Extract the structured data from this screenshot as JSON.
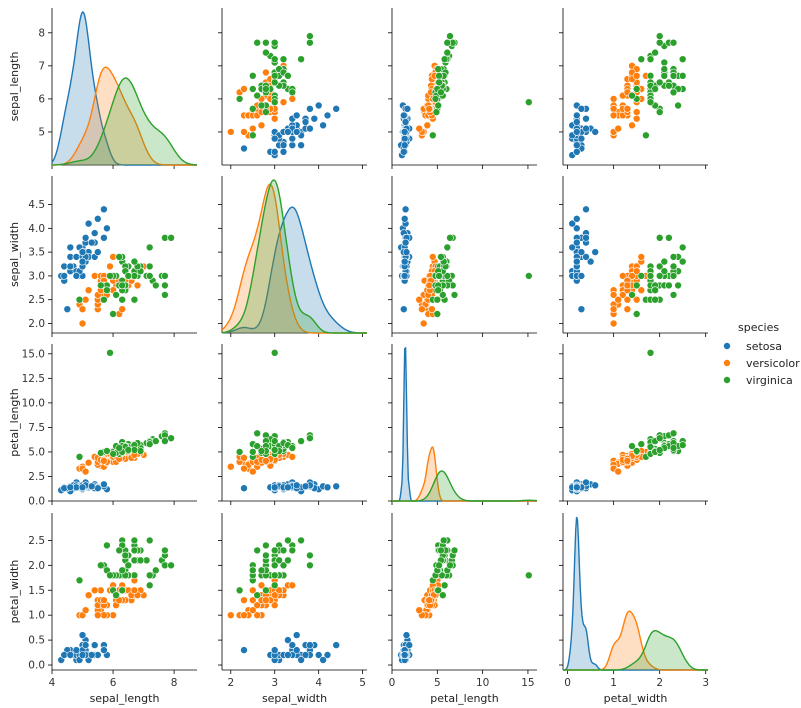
{
  "chart_data": {
    "type": "scatter",
    "variables": [
      "sepal_length",
      "sepal_width",
      "petal_length",
      "petal_width"
    ],
    "axis_ranges": {
      "sepal_length": [
        4.0,
        8.75
      ],
      "sepal_width": [
        1.8,
        5.1
      ],
      "petal_length": [
        0.0,
        16.0
      ],
      "petal_width": [
        -0.1,
        3.05
      ]
    },
    "ticks": {
      "sepal_length": [
        4,
        6,
        8
      ],
      "sepal_width": [
        2,
        3,
        4,
        5
      ],
      "petal_length": [
        0,
        5,
        10,
        15
      ],
      "petal_width": [
        0,
        1,
        2,
        3
      ]
    },
    "y_ticks": {
      "sepal_length": [
        "5",
        "6",
        "7",
        "8"
      ],
      "sepal_width": [
        "2.0",
        "2.5",
        "3.0",
        "3.5",
        "4.0",
        "4.5"
      ],
      "petal_length": [
        "0.0",
        "2.5",
        "5.0",
        "7.5",
        "10.0",
        "12.5",
        "15.0"
      ],
      "petal_width": [
        "0.0",
        "0.5",
        "1.0",
        "1.5",
        "2.0",
        "2.5"
      ]
    },
    "x_ticks": {
      "sepal_length": [
        "4",
        "6",
        "8"
      ],
      "sepal_width": [
        "2",
        "3",
        "4",
        "5"
      ],
      "petal_length": [
        "0",
        "5",
        "10",
        "15"
      ],
      "petal_width": [
        "0",
        "1",
        "2",
        "3"
      ]
    },
    "legend": {
      "title": "species",
      "position": "right",
      "entries": [
        "setosa",
        "versicolor",
        "virginica"
      ]
    },
    "colors": {
      "setosa": "#1f77b4",
      "versicolor": "#ff7f0e",
      "virginica": "#2ca02c"
    },
    "series": [
      {
        "name": "setosa",
        "sepal_length": [
          5.1,
          4.9,
          4.7,
          4.6,
          5.0,
          5.4,
          4.6,
          5.0,
          4.4,
          4.9,
          5.4,
          4.8,
          4.8,
          4.3,
          5.8,
          5.7,
          5.4,
          5.1,
          5.7,
          5.1,
          5.4,
          5.1,
          4.6,
          5.1,
          4.8,
          5.0,
          5.0,
          5.2,
          5.2,
          4.7,
          4.8,
          5.4,
          5.2,
          5.5,
          4.9,
          5.0,
          5.5,
          4.9,
          4.4,
          5.1,
          5.0,
          4.5,
          4.4,
          5.0,
          5.1,
          4.8,
          5.1,
          4.6,
          5.3,
          5.0
        ],
        "sepal_width": [
          3.5,
          3.0,
          3.2,
          3.1,
          3.6,
          3.9,
          3.4,
          3.4,
          2.9,
          3.1,
          3.7,
          3.4,
          3.0,
          3.0,
          4.0,
          4.4,
          3.9,
          3.5,
          3.8,
          3.8,
          3.4,
          3.7,
          3.6,
          3.3,
          3.4,
          3.0,
          3.4,
          3.5,
          3.4,
          3.2,
          3.1,
          3.4,
          4.1,
          4.2,
          3.1,
          3.2,
          3.5,
          3.6,
          3.0,
          3.4,
          3.5,
          2.3,
          3.2,
          3.5,
          3.8,
          3.0,
          3.8,
          3.2,
          3.7,
          3.3
        ],
        "petal_length": [
          1.4,
          1.4,
          1.3,
          1.5,
          1.4,
          1.7,
          1.4,
          1.5,
          1.4,
          1.5,
          1.5,
          1.6,
          1.4,
          1.1,
          1.2,
          1.5,
          1.3,
          1.4,
          1.7,
          1.5,
          1.7,
          1.5,
          1.0,
          1.7,
          1.9,
          1.6,
          1.6,
          1.5,
          1.4,
          1.6,
          1.6,
          1.5,
          1.5,
          1.4,
          1.5,
          1.2,
          1.3,
          1.4,
          1.3,
          1.5,
          1.3,
          1.3,
          1.3,
          1.6,
          1.9,
          1.4,
          1.6,
          1.4,
          1.5,
          1.4
        ],
        "petal_width": [
          0.2,
          0.2,
          0.2,
          0.2,
          0.2,
          0.4,
          0.3,
          0.2,
          0.2,
          0.1,
          0.2,
          0.2,
          0.1,
          0.1,
          0.2,
          0.4,
          0.4,
          0.3,
          0.3,
          0.3,
          0.2,
          0.4,
          0.2,
          0.5,
          0.2,
          0.2,
          0.4,
          0.2,
          0.2,
          0.2,
          0.2,
          0.4,
          0.1,
          0.2,
          0.2,
          0.2,
          0.2,
          0.1,
          0.2,
          0.2,
          0.3,
          0.3,
          0.2,
          0.6,
          0.4,
          0.3,
          0.2,
          0.2,
          0.2,
          0.2
        ]
      },
      {
        "name": "versicolor",
        "sepal_length": [
          7.0,
          6.4,
          6.9,
          5.5,
          6.5,
          5.7,
          6.3,
          4.9,
          6.6,
          5.2,
          5.0,
          5.9,
          6.0,
          6.1,
          5.6,
          6.7,
          5.6,
          5.8,
          6.2,
          5.6,
          5.9,
          6.1,
          6.3,
          6.1,
          6.4,
          6.6,
          6.8,
          6.7,
          6.0,
          5.7,
          5.5,
          5.5,
          5.8,
          6.0,
          5.4,
          6.0,
          6.7,
          6.3,
          5.6,
          5.5,
          5.5,
          6.1,
          5.8,
          5.0,
          5.6,
          5.7,
          5.7,
          6.2,
          5.1,
          5.7
        ],
        "sepal_width": [
          3.2,
          3.2,
          3.1,
          2.3,
          2.8,
          2.8,
          3.3,
          2.4,
          2.9,
          2.7,
          2.0,
          3.0,
          2.2,
          2.9,
          2.9,
          3.1,
          3.0,
          2.7,
          2.2,
          2.5,
          3.2,
          2.8,
          2.5,
          2.8,
          2.9,
          3.0,
          2.8,
          3.0,
          2.9,
          2.6,
          2.4,
          2.4,
          2.7,
          2.7,
          3.0,
          3.4,
          3.1,
          2.3,
          3.0,
          2.5,
          2.6,
          3.0,
          2.6,
          2.3,
          2.7,
          3.0,
          2.9,
          2.9,
          2.5,
          2.8
        ],
        "petal_length": [
          4.7,
          4.5,
          4.9,
          4.0,
          4.6,
          4.5,
          4.7,
          3.3,
          4.6,
          3.9,
          3.5,
          4.2,
          4.0,
          4.7,
          3.6,
          4.4,
          4.5,
          4.1,
          4.5,
          3.9,
          4.8,
          4.0,
          4.9,
          4.7,
          4.3,
          4.4,
          4.8,
          5.0,
          4.5,
          3.5,
          3.8,
          3.7,
          3.9,
          5.1,
          4.5,
          4.5,
          4.7,
          4.4,
          4.1,
          4.0,
          4.4,
          4.6,
          4.0,
          3.3,
          4.2,
          4.2,
          4.2,
          4.3,
          3.0,
          4.1
        ],
        "petal_width": [
          1.4,
          1.5,
          1.5,
          1.3,
          1.5,
          1.3,
          1.6,
          1.0,
          1.3,
          1.4,
          1.0,
          1.5,
          1.0,
          1.4,
          1.3,
          1.4,
          1.5,
          1.0,
          1.5,
          1.1,
          1.8,
          1.3,
          1.5,
          1.2,
          1.3,
          1.4,
          1.4,
          1.7,
          1.5,
          1.0,
          1.1,
          1.0,
          1.2,
          1.6,
          1.5,
          1.6,
          1.5,
          1.3,
          1.3,
          1.3,
          1.2,
          1.4,
          1.2,
          1.0,
          1.3,
          1.2,
          1.3,
          1.3,
          1.1,
          1.3
        ]
      },
      {
        "name": "virginica",
        "sepal_length": [
          6.3,
          5.8,
          7.1,
          6.3,
          6.5,
          7.6,
          4.9,
          7.3,
          6.7,
          7.2,
          6.5,
          6.4,
          6.8,
          5.7,
          5.8,
          6.4,
          6.5,
          7.7,
          7.7,
          6.0,
          6.9,
          5.6,
          7.7,
          6.3,
          6.7,
          7.2,
          6.2,
          6.1,
          6.4,
          7.2,
          7.4,
          7.9,
          6.4,
          6.3,
          6.1,
          7.7,
          6.3,
          6.4,
          6.0,
          6.9,
          6.7,
          6.9,
          5.8,
          6.8,
          6.7,
          6.7,
          6.3,
          6.5,
          6.2,
          5.9
        ],
        "sepal_width": [
          3.3,
          2.7,
          3.0,
          2.9,
          3.0,
          3.0,
          2.5,
          2.9,
          2.5,
          3.6,
          3.2,
          2.7,
          3.0,
          2.5,
          2.8,
          3.2,
          3.0,
          3.8,
          2.6,
          2.2,
          3.2,
          2.8,
          2.8,
          2.7,
          3.3,
          3.2,
          2.8,
          3.0,
          2.8,
          3.0,
          2.8,
          3.8,
          2.8,
          2.8,
          2.6,
          3.0,
          3.4,
          3.1,
          3.0,
          3.1,
          3.1,
          3.1,
          2.7,
          3.2,
          3.3,
          3.0,
          2.5,
          3.0,
          3.4,
          3.0
        ],
        "petal_length": [
          6.0,
          5.1,
          5.9,
          5.6,
          5.8,
          6.6,
          4.5,
          6.3,
          5.8,
          6.1,
          5.1,
          5.3,
          5.5,
          5.0,
          5.1,
          5.3,
          5.5,
          6.7,
          6.9,
          5.0,
          5.7,
          4.9,
          6.7,
          4.9,
          5.7,
          6.0,
          4.8,
          4.9,
          5.6,
          5.8,
          6.1,
          6.4,
          5.6,
          5.1,
          5.6,
          6.1,
          5.6,
          5.5,
          4.8,
          5.4,
          5.6,
          5.1,
          5.1,
          5.9,
          5.7,
          5.2,
          5.0,
          5.2,
          5.4,
          15.1
        ],
        "petal_width": [
          2.5,
          1.9,
          2.1,
          1.8,
          2.2,
          2.1,
          1.7,
          1.8,
          1.8,
          2.5,
          2.0,
          1.9,
          2.1,
          2.0,
          2.4,
          2.3,
          1.8,
          2.2,
          2.3,
          1.5,
          2.3,
          2.0,
          2.0,
          1.8,
          2.1,
          1.8,
          1.8,
          1.8,
          2.1,
          1.6,
          1.9,
          2.0,
          2.2,
          1.5,
          1.4,
          2.3,
          2.4,
          1.8,
          1.8,
          2.1,
          2.4,
          2.3,
          1.9,
          2.3,
          2.5,
          2.3,
          1.9,
          2.0,
          2.3,
          1.8
        ]
      }
    ]
  }
}
